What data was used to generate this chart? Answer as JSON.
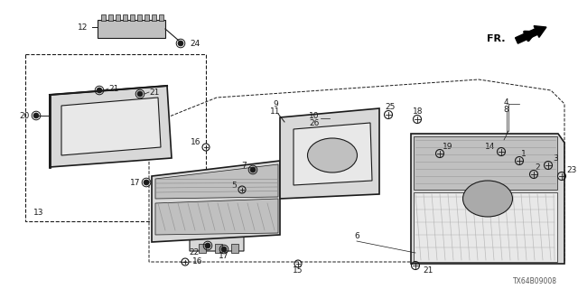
{
  "bg_color": "#ffffff",
  "line_color": "#1a1a1a",
  "part_number_code": "TX64B09008",
  "gray_fill": "#d8d8d8",
  "dark_gray": "#aaaaaa",
  "med_gray": "#c0c0c0",
  "light_gray": "#e8e8e8"
}
